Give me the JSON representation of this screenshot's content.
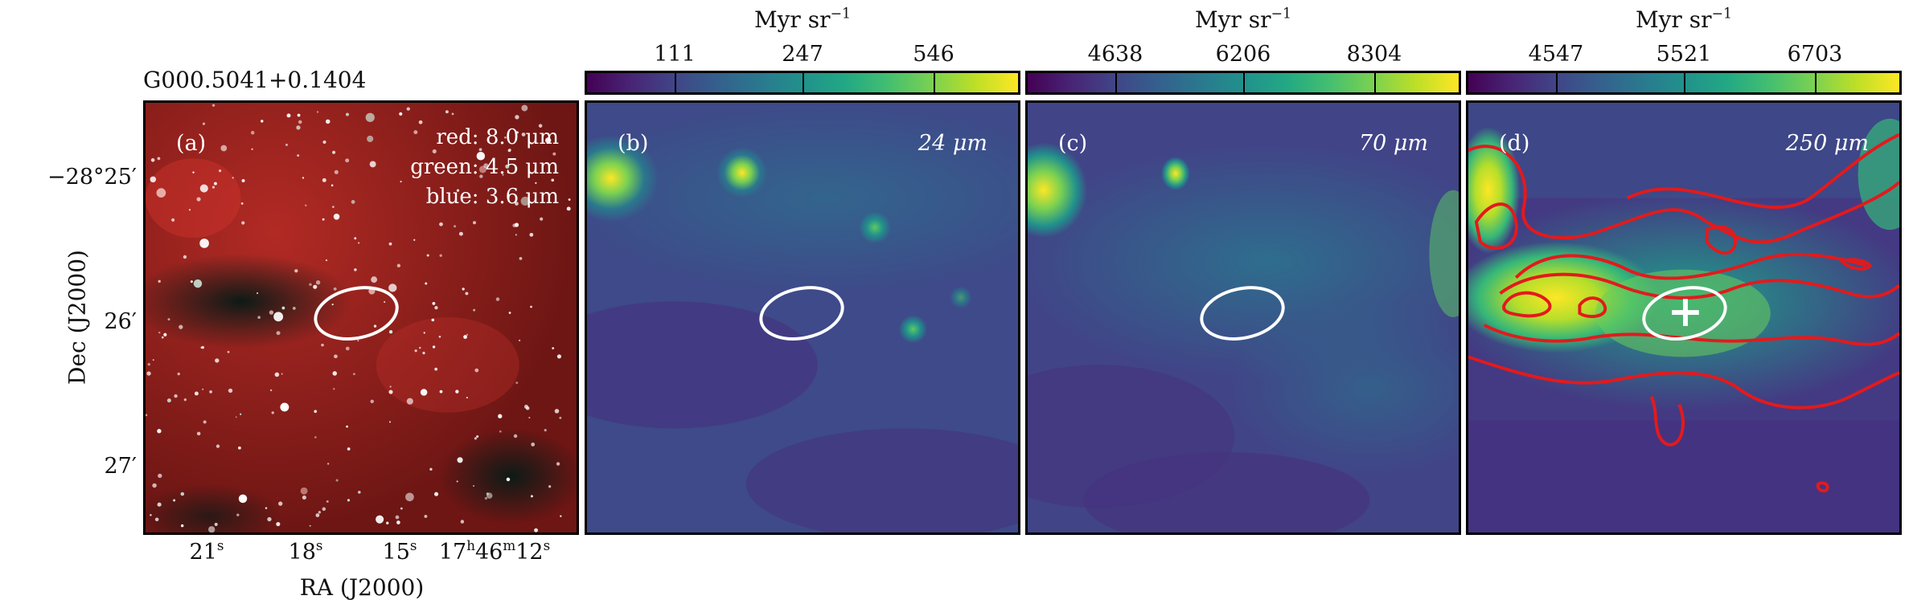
{
  "source_name": "G000.5041+0.1404",
  "axes": {
    "ylabel": "Dec (J2000)",
    "xlabel": "RA (J2000)",
    "yticks": [
      "−28°25′",
      "26′",
      "27′"
    ],
    "xticks": [
      {
        "main": "21",
        "sup": "s"
      },
      {
        "main": "18",
        "sup": "s"
      },
      {
        "main": "15",
        "sup": "s"
      },
      {
        "main": "17",
        "sup": "h",
        "main2": "46",
        "sup2": "m",
        "main3": "12",
        "sup3": "s"
      }
    ]
  },
  "panels": [
    {
      "letter": "(a)",
      "rgb": {
        "red": "red: 8.0 μm",
        "green": "green: 4.5 μm",
        "blue": "blue: 3.6 μm"
      }
    },
    {
      "letter": "(b)",
      "wavelength": "24 μm",
      "colorbar": {
        "unit": "Myr sr",
        "exp": "−1",
        "ticks": [
          "111",
          "247",
          "546"
        ],
        "cmap": "viridis"
      }
    },
    {
      "letter": "(c)",
      "wavelength": "70 μm",
      "colorbar": {
        "unit": "Myr sr",
        "exp": "−1",
        "ticks": [
          "4638",
          "6206",
          "8304"
        ],
        "cmap": "viridis"
      }
    },
    {
      "letter": "(d)",
      "wavelength": "250 μm",
      "colorbar": {
        "unit": "Myr sr",
        "exp": "−1",
        "ticks": [
          "4547",
          "5521",
          "6703"
        ],
        "cmap": "viridis"
      },
      "contour_color": "#e31a1c",
      "marker": "plus"
    }
  ],
  "colors": {
    "ellipse": "#ffffff",
    "contour": "#e31a1c",
    "rgb_background": "#8a1a18",
    "frame": "#000000"
  }
}
